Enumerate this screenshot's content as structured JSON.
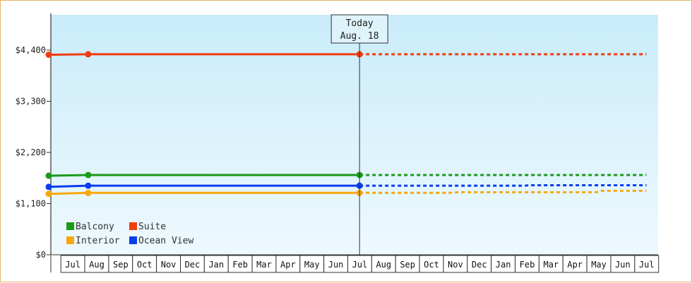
{
  "chart_data": {
    "type": "line",
    "y_ticks": [
      "$0",
      "$1,100",
      "$2,200",
      "$3,300",
      "$4,400"
    ],
    "ylim": [
      0,
      4400
    ],
    "months": [
      "Jul",
      "Aug",
      "Sep",
      "Oct",
      "Nov",
      "Dec",
      "Jan",
      "Feb",
      "Mar",
      "Apr",
      "May",
      "Jun",
      "Jul",
      "Aug",
      "Sep",
      "Oct",
      "Nov",
      "Dec",
      "Jan",
      "Feb",
      "Mar",
      "Apr",
      "May",
      "Jun",
      "Jul"
    ],
    "today_index": 13,
    "today_label_line1": "Today",
    "today_label_line2": "Aug. 18",
    "series": [
      {
        "name": "Balcony",
        "color": "#1a9a1a",
        "points": [
          [
            0,
            1700
          ],
          [
            1.65,
            1715
          ],
          [
            13,
            1715
          ]
        ],
        "projected": [
          [
            13,
            1715
          ],
          [
            25,
            1715
          ]
        ]
      },
      {
        "name": "Suite",
        "color": "#f03c10",
        "points": [
          [
            0,
            4300
          ],
          [
            1.65,
            4310
          ],
          [
            13,
            4310
          ]
        ],
        "projected": [
          [
            13,
            4310
          ],
          [
            25,
            4310
          ]
        ]
      },
      {
        "name": "Interior",
        "color": "#f7a80e",
        "points": [
          [
            0,
            1310
          ],
          [
            1.65,
            1330
          ],
          [
            13,
            1330
          ]
        ],
        "projected": [
          [
            13,
            1330
          ],
          [
            16.9,
            1330
          ],
          [
            17.1,
            1345
          ],
          [
            22.9,
            1345
          ],
          [
            23.1,
            1375
          ],
          [
            25,
            1375
          ]
        ]
      },
      {
        "name": "Ocean View",
        "color": "#0a3cf0",
        "points": [
          [
            0,
            1460
          ],
          [
            1.65,
            1485
          ],
          [
            13,
            1485
          ]
        ],
        "projected": [
          [
            13,
            1485
          ],
          [
            19.9,
            1485
          ],
          [
            20.1,
            1495
          ],
          [
            25,
            1495
          ]
        ]
      }
    ],
    "legend": [
      {
        "name": "Balcony",
        "color": "#1a9a1a"
      },
      {
        "name": "Suite",
        "color": "#f03c10"
      },
      {
        "name": "Interior",
        "color": "#f7a80e"
      },
      {
        "name": "Ocean View",
        "color": "#0a3cf0"
      }
    ],
    "legend_position": "bottom-left",
    "background_gradient": [
      "#c9ecfa",
      "#eef9fe"
    ]
  }
}
